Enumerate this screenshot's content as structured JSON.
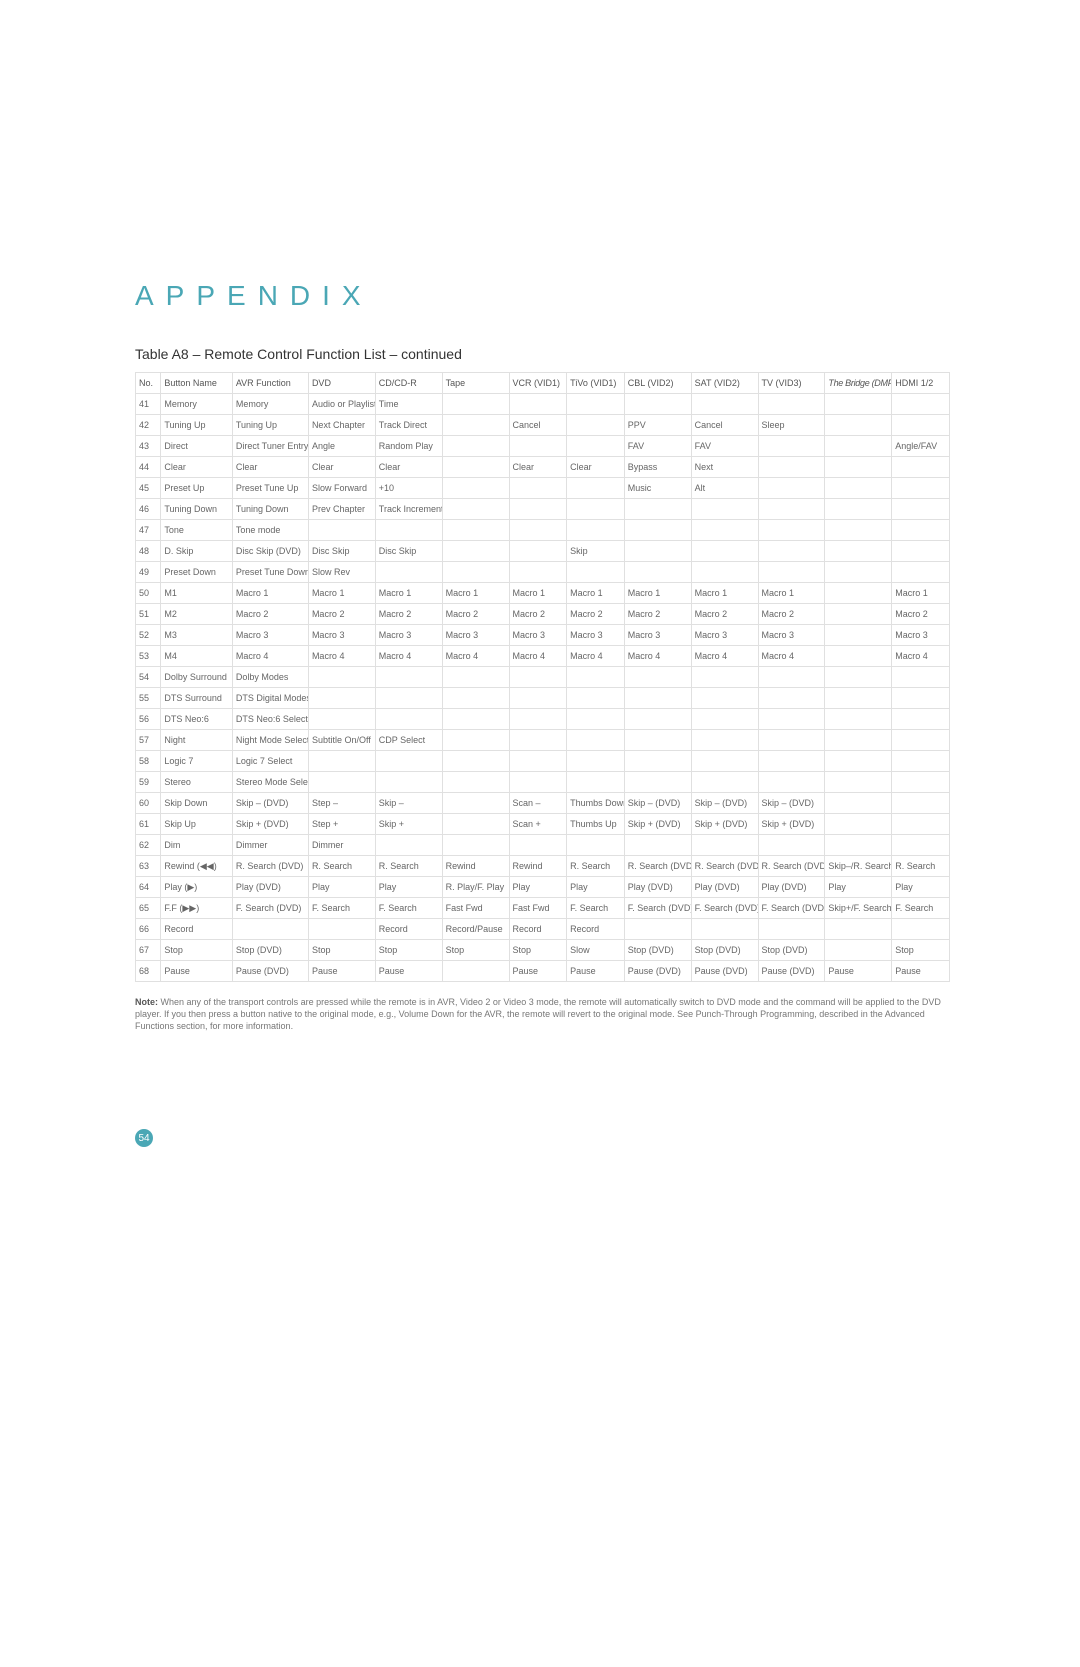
{
  "heading": "APPENDIX",
  "subheading": "Table A8 –  Remote Control Function List – continued",
  "page_number": "54",
  "colors": {
    "accent": "#4aa7b5",
    "text": "#555555",
    "border": "#e0e0e0",
    "background": "#ffffff"
  },
  "note_label": "Note:",
  "note_text": " When any of the transport controls are pressed while the remote is in AVR, Video 2 or Video 3 mode, the remote will automatically switch to DVD mode and the command will be applied to the DVD player. If you then press a button native to the original mode, e.g., Volume Down for the AVR, the remote will revert to the original mode. See Punch-Through Programming, described in the Advanced Functions section, for more information.",
  "columns": [
    "No.",
    "Button Name",
    "AVR Function",
    "DVD",
    "CD/CD-R",
    "Tape",
    "VCR (VID1)",
    "TiVo (VID1)",
    "CBL (VID2)",
    "SAT (VID2)",
    "TV (VID3)",
    "The Bridge (DMP)",
    "HDMI 1/2"
  ],
  "rows": [
    [
      "41",
      "Memory",
      "Memory",
      "Audio or Playlist",
      "Time",
      "",
      "",
      "",
      "",
      "",
      "",
      "",
      ""
    ],
    [
      "42",
      "Tuning Up",
      "Tuning Up",
      "Next Chapter",
      "Track Direct",
      "",
      "Cancel",
      "",
      "PPV",
      "Cancel",
      "Sleep",
      "",
      ""
    ],
    [
      "43",
      "Direct",
      "Direct Tuner Entry",
      "Angle",
      "Random Play",
      "",
      "",
      "",
      "FAV",
      "FAV",
      "",
      "",
      "Angle/FAV"
    ],
    [
      "44",
      "Clear",
      "Clear",
      "Clear",
      "Clear",
      "",
      "Clear",
      "Clear",
      "Bypass",
      "Next",
      "",
      "",
      ""
    ],
    [
      "45",
      "Preset Up",
      "Preset Tune Up",
      "Slow Forward",
      "+10",
      "",
      "",
      "",
      "Music",
      "Alt",
      "",
      "",
      ""
    ],
    [
      "46",
      "Tuning Down",
      "Tuning Down",
      "Prev Chapter",
      "Track Increment",
      "",
      "",
      "",
      "",
      "",
      "",
      "",
      ""
    ],
    [
      "47",
      "Tone",
      "Tone mode",
      "",
      "",
      "",
      "",
      "",
      "",
      "",
      "",
      "",
      ""
    ],
    [
      "48",
      "D. Skip",
      "Disc Skip (DVD)",
      "Disc Skip",
      "Disc Skip",
      "",
      "",
      "Skip",
      "",
      "",
      "",
      "",
      ""
    ],
    [
      "49",
      "Preset Down",
      "Preset Tune Down",
      "Slow Rev",
      "",
      "",
      "",
      "",
      "",
      "",
      "",
      "",
      ""
    ],
    [
      "50",
      "M1",
      "Macro 1",
      "Macro 1",
      "Macro 1",
      "Macro 1",
      "Macro 1",
      "Macro 1",
      "Macro 1",
      "Macro 1",
      "Macro 1",
      "",
      "Macro 1"
    ],
    [
      "51",
      "M2",
      "Macro 2",
      "Macro 2",
      "Macro 2",
      "Macro 2",
      "Macro 2",
      "Macro 2",
      "Macro 2",
      "Macro 2",
      "Macro 2",
      "",
      "Macro 2"
    ],
    [
      "52",
      "M3",
      "Macro 3",
      "Macro 3",
      "Macro 3",
      "Macro 3",
      "Macro 3",
      "Macro 3",
      "Macro 3",
      "Macro 3",
      "Macro 3",
      "",
      "Macro 3"
    ],
    [
      "53",
      "M4",
      "Macro 4",
      "Macro 4",
      "Macro 4",
      "Macro 4",
      "Macro 4",
      "Macro 4",
      "Macro 4",
      "Macro 4",
      "Macro 4",
      "",
      "Macro 4"
    ],
    [
      "54",
      "Dolby Surround",
      "Dolby Modes",
      "",
      "",
      "",
      "",
      "",
      "",
      "",
      "",
      "",
      ""
    ],
    [
      "55",
      "DTS Surround",
      "DTS Digital Modes",
      "",
      "",
      "",
      "",
      "",
      "",
      "",
      "",
      "",
      ""
    ],
    [
      "56",
      "DTS Neo:6",
      "DTS Neo:6 Select",
      "",
      "",
      "",
      "",
      "",
      "",
      "",
      "",
      "",
      ""
    ],
    [
      "57",
      "Night",
      "Night Mode Select",
      "Subtitle On/Off",
      "CDP Select",
      "",
      "",
      "",
      "",
      "",
      "",
      "",
      ""
    ],
    [
      "58",
      "Logic 7",
      "Logic 7 Select",
      "",
      "",
      "",
      "",
      "",
      "",
      "",
      "",
      "",
      ""
    ],
    [
      "59",
      "Stereo",
      "Stereo Mode Select",
      "",
      "",
      "",
      "",
      "",
      "",
      "",
      "",
      "",
      ""
    ],
    [
      "60",
      "Skip Down",
      "Skip – (DVD)",
      "Step –",
      "Skip –",
      "",
      "Scan –",
      "Thumbs Down",
      "Skip – (DVD)",
      "Skip – (DVD)",
      "Skip – (DVD)",
      "",
      ""
    ],
    [
      "61",
      "Skip Up",
      "Skip + (DVD)",
      "Step +",
      "Skip +",
      "",
      "Scan +",
      "Thumbs Up",
      "Skip + (DVD)",
      "Skip + (DVD)",
      "Skip + (DVD)",
      "",
      ""
    ],
    [
      "62",
      "Dim",
      "Dimmer",
      "Dimmer",
      "",
      "",
      "",
      "",
      "",
      "",
      "",
      "",
      ""
    ],
    [
      "63",
      "Rewind (◀◀)",
      "R. Search (DVD)",
      "R. Search",
      "R. Search",
      "Rewind",
      "Rewind",
      "R. Search",
      "R. Search (DVD)",
      "R. Search (DVD)",
      "R. Search (DVD)",
      "Skip–/R. Search",
      "R. Search"
    ],
    [
      "64",
      "Play  (▶)",
      "Play (DVD)",
      "Play",
      "Play",
      "R. Play/F. Play",
      "Play",
      "Play",
      "Play (DVD)",
      "Play (DVD)",
      "Play (DVD)",
      "Play",
      "Play"
    ],
    [
      "65",
      "F.F (▶▶)",
      "F. Search (DVD)",
      "F. Search",
      "F. Search",
      "Fast Fwd",
      "Fast Fwd",
      "F. Search",
      "F. Search (DVD)",
      "F. Search (DVD)",
      "F. Search (DVD)",
      "Skip+/F. Search",
      "F. Search"
    ],
    [
      "66",
      "Record",
      "",
      "",
      "Record",
      "Record/Pause",
      "Record",
      "Record",
      "",
      "",
      "",
      "",
      ""
    ],
    [
      "67",
      "Stop",
      "Stop (DVD)",
      "Stop",
      "Stop",
      "Stop",
      "Stop",
      "Slow",
      "Stop (DVD)",
      "Stop (DVD)",
      "Stop (DVD)",
      "",
      "Stop"
    ],
    [
      "68",
      "Pause",
      "Pause (DVD)",
      "Pause",
      "Pause",
      "",
      "Pause",
      "Pause",
      "Pause (DVD)",
      "Pause (DVD)",
      "Pause (DVD)",
      "Pause",
      "Pause"
    ]
  ]
}
